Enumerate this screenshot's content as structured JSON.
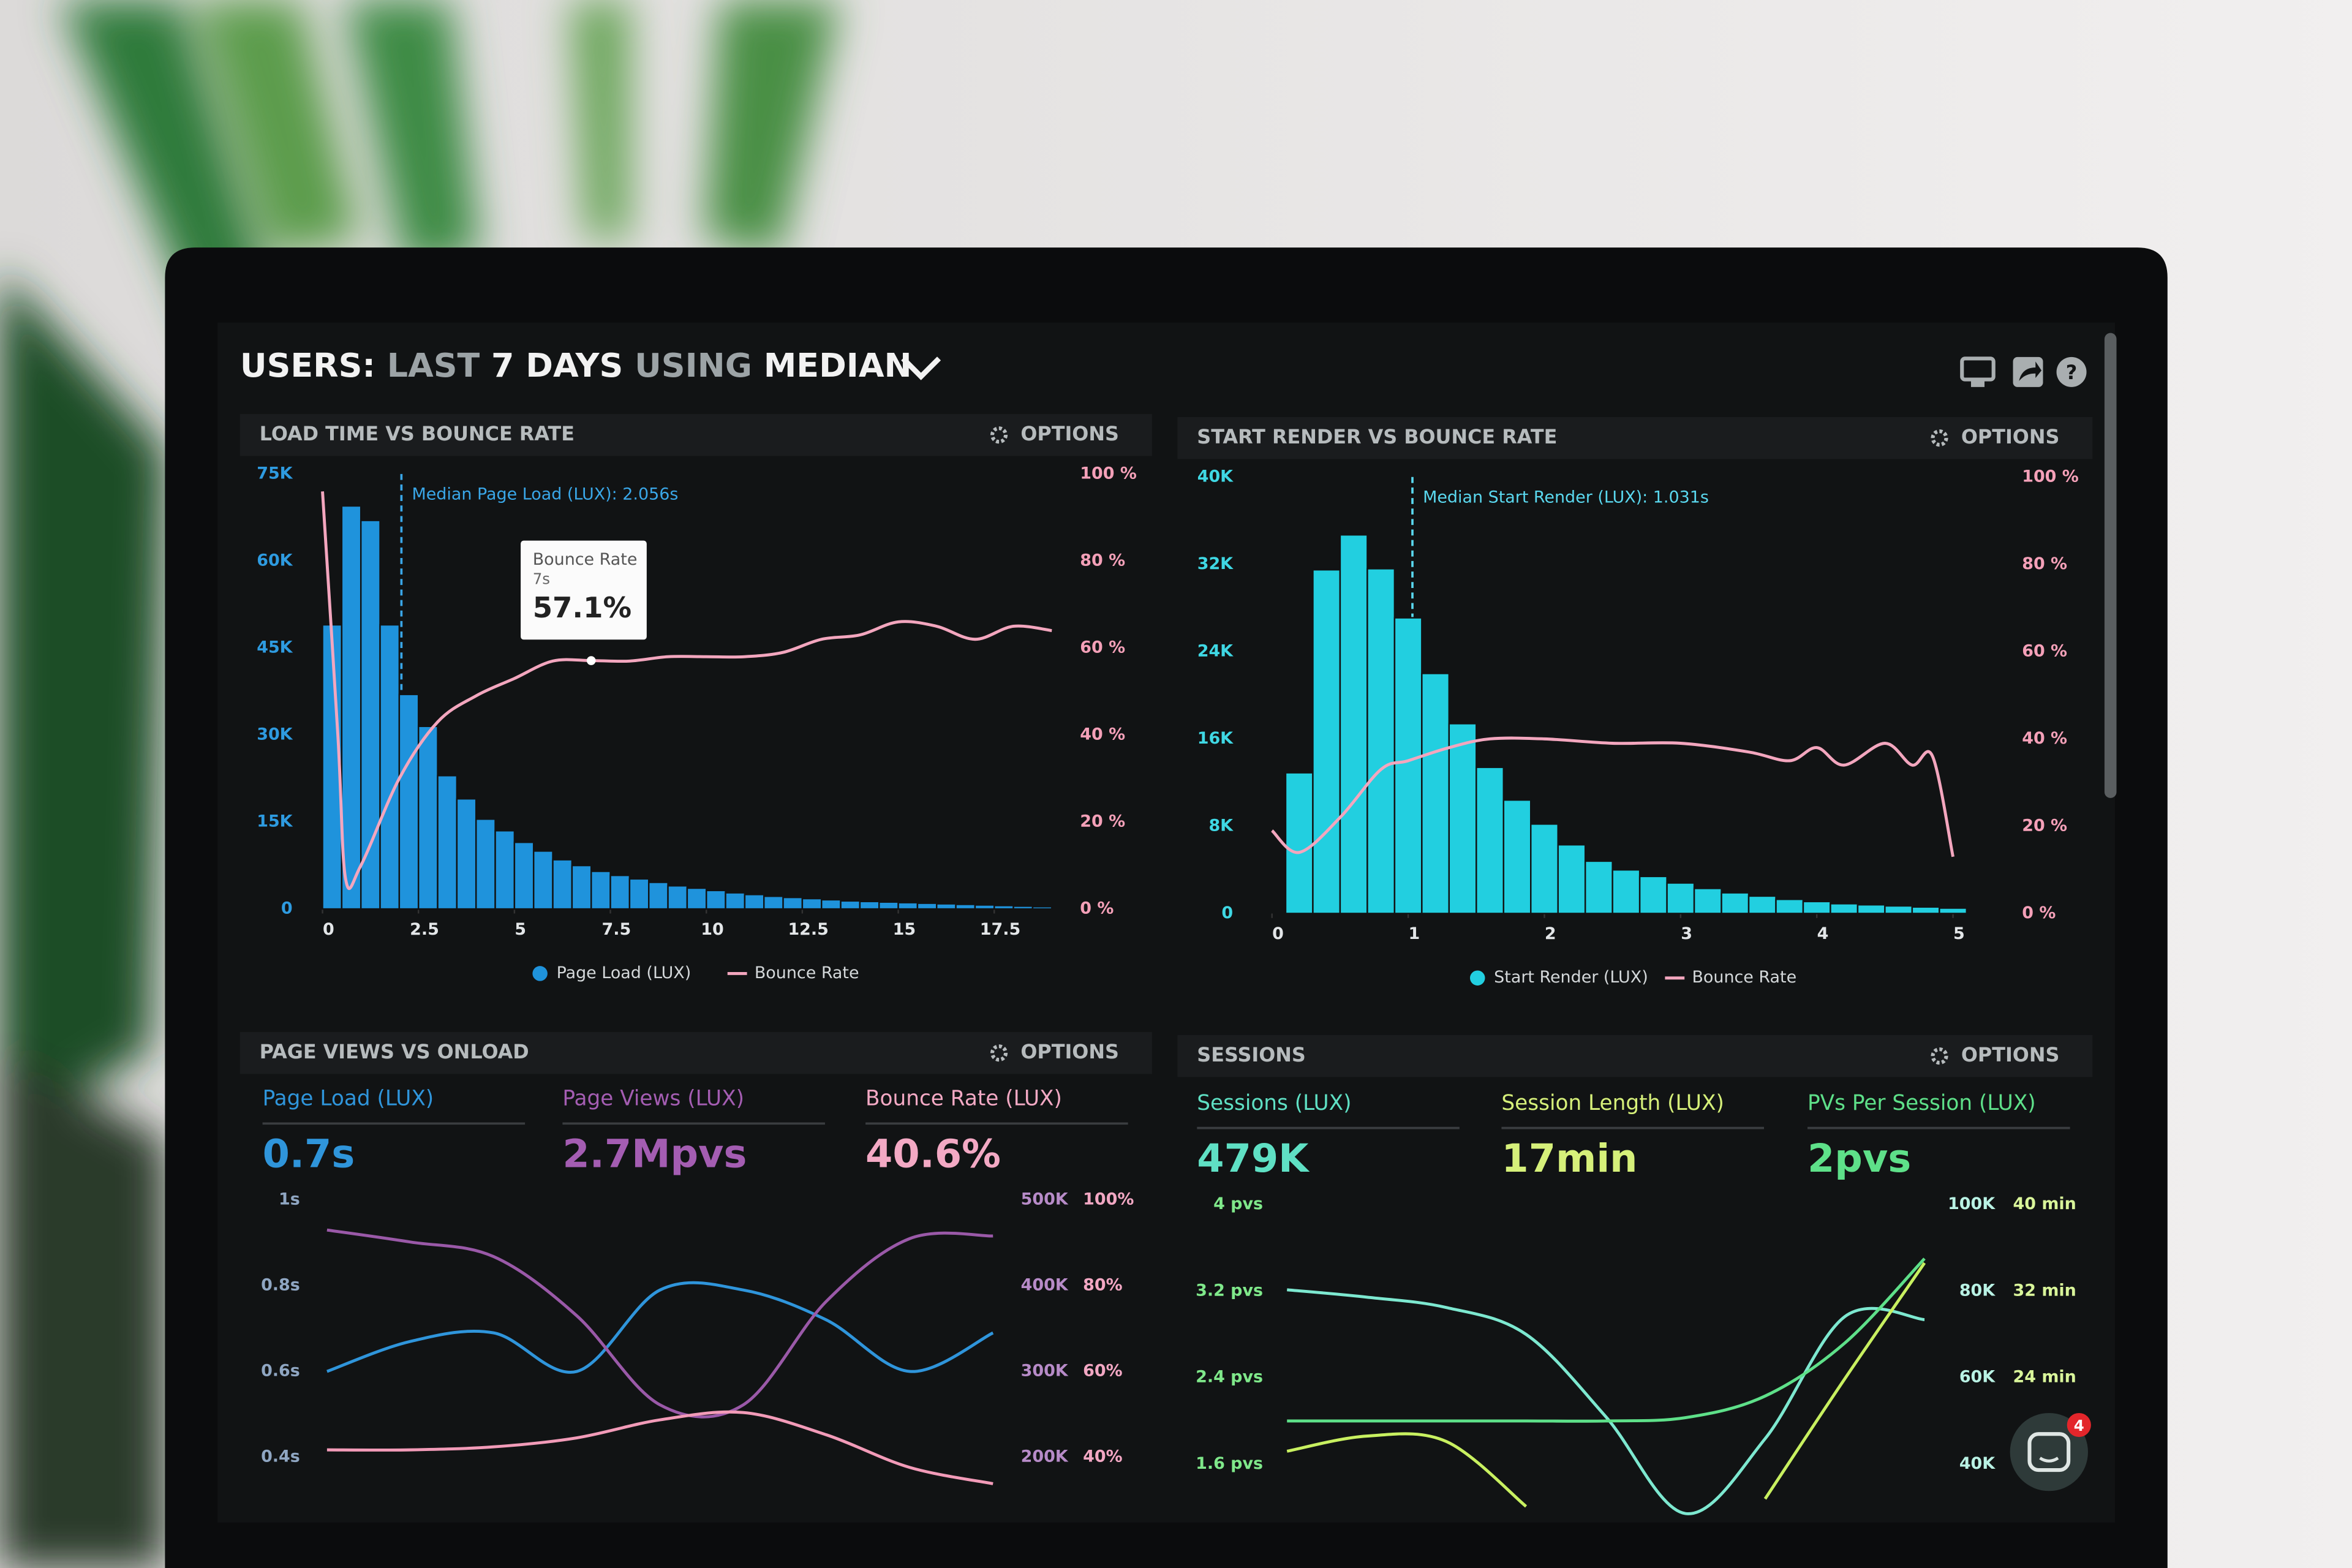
{
  "header": {
    "title": [
      "USERS:",
      "LAST",
      "7 DAYS",
      "USING",
      "MEDIAN"
    ],
    "chat_badge": 4
  },
  "chart_data": [
    {
      "type": "histogram",
      "title": "LOAD TIME VS BOUNCE RATE",
      "options_label": "OPTIONS",
      "name": "Page Load (LUX)",
      "color": "#1f93dc",
      "bins": [
        0,
        0.5,
        1,
        1.5,
        2,
        2.5,
        3,
        3.5,
        4,
        4.5,
        5,
        5.5,
        6,
        6.5,
        7,
        7.5,
        8,
        8.5,
        9,
        9.5,
        10,
        10.5,
        11,
        11.5,
        12,
        12.5,
        13,
        13.5,
        14,
        14.5,
        15,
        15.5,
        16,
        16.5,
        17,
        17.5,
        18,
        18.5,
        19
      ],
      "values": [
        49000,
        69500,
        67000,
        49000,
        37000,
        31500,
        23000,
        19000,
        15500,
        13500,
        11500,
        10000,
        8500,
        7500,
        6500,
        5800,
        5200,
        4600,
        4000,
        3600,
        3200,
        2800,
        2500,
        2200,
        2000,
        1800,
        1600,
        1400,
        1300,
        1200,
        1100,
        1000,
        900,
        800,
        700,
        600,
        500,
        400
      ],
      "series": [
        {
          "name": "Bounce Rate",
          "color": "#f3a6be",
          "axis": "y2",
          "x": [
            0,
            0.4,
            0.6,
            1,
            2,
            3,
            4,
            5,
            6,
            7,
            8,
            9,
            10,
            11,
            12,
            13,
            14,
            15,
            16,
            17,
            18,
            19
          ],
          "values": [
            96,
            40,
            7,
            10,
            30,
            43,
            49,
            53,
            57,
            57.1,
            57,
            58,
            58,
            58,
            59,
            62,
            63,
            66,
            65,
            62,
            65,
            64
          ]
        }
      ],
      "xlim": [
        0,
        19.5
      ],
      "xticks": [
        0,
        2.5,
        5,
        7.5,
        10,
        12.5,
        15,
        17.5
      ],
      "ylim": [
        0,
        75000
      ],
      "yticks": [
        0,
        {
          "value": 15000,
          "label": "15K"
        },
        {
          "value": 30000,
          "label": "30K"
        },
        {
          "value": 45000,
          "label": "45K"
        },
        {
          "value": 60000,
          "label": "60K"
        },
        {
          "value": 75000,
          "label": "75K"
        }
      ],
      "y2lim": [
        0,
        100
      ],
      "y2ticks": [
        {
          "value": 0,
          "label": "0 %"
        },
        {
          "value": 20,
          "label": "20 %"
        },
        {
          "value": 40,
          "label": "40 %"
        },
        {
          "value": 60,
          "label": "60 %"
        },
        {
          "value": 80,
          "label": "80 %"
        },
        {
          "value": 100,
          "label": "100 %"
        }
      ],
      "axis_colors": {
        "y": "#2e9be0",
        "y2": "#f4a0b8",
        "x": "#e3e6e8"
      },
      "annotations": [
        {
          "text": "Median Page Load (LUX): 2.056s",
          "x": 2.056,
          "color": "#3aa7e8"
        }
      ],
      "tooltip": {
        "title": "Bounce Rate",
        "x": {
          "value": 7,
          "label": "7s"
        },
        "value": 57.1,
        "value_label": "57.1%"
      }
    },
    {
      "type": "histogram",
      "title": "START RENDER VS BOUNCE RATE",
      "options_label": "OPTIONS",
      "name": "Start Render (LUX)",
      "color": "#22cfe0",
      "bins": [
        0.1,
        0.3,
        0.5,
        0.7,
        0.9,
        1.1,
        1.3,
        1.5,
        1.7,
        1.9,
        2.1,
        2.3,
        2.5,
        2.7,
        2.9,
        3.1,
        3.3,
        3.5,
        3.7,
        3.9,
        4.1,
        4.3,
        4.5,
        4.7,
        4.9,
        5.1
      ],
      "values": [
        12900,
        31500,
        34700,
        31600,
        27100,
        22000,
        17400,
        13400,
        10400,
        8200,
        6300,
        4800,
        4000,
        3400,
        2800,
        2300,
        1900,
        1600,
        1300,
        1100,
        900,
        800,
        700,
        600,
        500
      ],
      "series": [
        {
          "name": "Bounce Rate",
          "color": "#f3a6be",
          "axis": "y2",
          "x": [
            0,
            0.2,
            0.5,
            0.8,
            1,
            1.3,
            1.6,
            2,
            2.5,
            3,
            3.5,
            3.8,
            4,
            4.2,
            4.5,
            4.7,
            4.85,
            5
          ],
          "values": [
            19,
            14,
            22,
            33,
            35,
            38,
            40,
            40,
            39,
            39,
            37,
            35,
            38,
            34,
            39,
            34,
            36,
            13
          ]
        }
      ],
      "xlim": [
        0,
        5
      ],
      "xticks": [
        0,
        1,
        2,
        3,
        4,
        5
      ],
      "ylim": [
        0,
        40000
      ],
      "yticks": [
        0,
        {
          "value": 8000,
          "label": "8K"
        },
        {
          "value": 16000,
          "label": "16K"
        },
        {
          "value": 24000,
          "label": "24K"
        },
        {
          "value": 32000,
          "label": "32K"
        },
        {
          "value": 40000,
          "label": "40K"
        }
      ],
      "y2lim": [
        0,
        100
      ],
      "y2ticks": [
        {
          "value": 0,
          "label": "0 %"
        },
        {
          "value": 20,
          "label": "20 %"
        },
        {
          "value": 40,
          "label": "40 %"
        },
        {
          "value": 60,
          "label": "60 %"
        },
        {
          "value": 80,
          "label": "80 %"
        },
        {
          "value": 100,
          "label": "100 %"
        }
      ],
      "axis_colors": {
        "y": "#3fd8e4",
        "y2": "#f4a0b8",
        "x": "#e3e6e8"
      },
      "annotations": [
        {
          "text": "Median Start Render (LUX): 1.031s",
          "x": 1.031,
          "color": "#5ad8ef"
        }
      ]
    },
    {
      "type": "line",
      "title": "PAGE VIEWS VS ONLOAD",
      "options_label": "OPTIONS",
      "stats": [
        {
          "label": "Page Load (LUX)",
          "value": "0.7s",
          "color": "#2f95db"
        },
        {
          "label": "Page Views (LUX)",
          "value": "2.7Mpvs",
          "color": "#a45db2"
        },
        {
          "label": "Bounce Rate (LUX)",
          "value": "40.6%",
          "color": "#f3a9c4"
        }
      ],
      "categories": [
        null,
        null,
        null,
        null,
        null,
        null,
        null,
        null,
        null
      ],
      "series": [
        {
          "color": "#2f95db",
          "axis": "y",
          "values": [
            0.6,
            0.67,
            0.69,
            0.6,
            0.79,
            0.79,
            0.72,
            0.6,
            0.69
          ]
        },
        {
          "color": "#9a59a8",
          "axis": "y2",
          "values": [
            465000,
            451000,
            434000,
            365000,
            261000,
            261000,
            382000,
            455000,
            458000
          ]
        },
        {
          "color": "#f29bb8",
          "axis": "y3",
          "values": [
            41.7,
            41.7,
            42.4,
            44.5,
            48.7,
            50.4,
            45.2,
            37.6,
            33.8
          ]
        }
      ],
      "ylim": [
        0.3,
        1
      ],
      "yticks": [
        {
          "value": 0.4,
          "label": "0.4s"
        },
        {
          "value": 0.6,
          "label": "0.6s"
        },
        {
          "value": 0.8,
          "label": "0.8s"
        },
        {
          "value": 1,
          "label": "1s"
        }
      ],
      "y2lim": [
        150000,
        500000
      ],
      "y2ticks": [
        {
          "value": 200000,
          "label": "200K"
        },
        {
          "value": 300000,
          "label": "300K"
        },
        {
          "value": 400000,
          "label": "400K"
        },
        {
          "value": 500000,
          "label": "500K"
        }
      ],
      "y3lim": [
        30,
        100
      ],
      "y3ticks": [
        {
          "value": 40,
          "label": "40%"
        },
        {
          "value": 60,
          "label": "60%"
        },
        {
          "value": 80,
          "label": "80%"
        },
        {
          "value": 100,
          "label": "100%"
        }
      ],
      "axis_colors": {
        "y": "#8fa6c2",
        "y2": "#b78bc8",
        "y3": "#f2a7c3"
      }
    },
    {
      "type": "line",
      "title": "SESSIONS",
      "options_label": "OPTIONS",
      "stats": [
        {
          "label": "Sessions (LUX)",
          "value": "479K",
          "color": "#5fe0c4"
        },
        {
          "label": "Session Length (LUX)",
          "value": "17min",
          "color": "#d6f07a"
        },
        {
          "label": "PVs Per Session (LUX)",
          "value": "2pvs",
          "color": "#5ee089"
        }
      ],
      "categories": [
        null,
        null,
        null,
        null,
        null,
        null,
        null,
        null,
        null
      ],
      "series": [
        {
          "color": "#7de8d0",
          "axis": "y2",
          "values": [
            80300,
            78600,
            76200,
            70000,
            51000,
            28600,
            45900,
            74100,
            73400
          ]
        },
        {
          "color": "#5ee089",
          "axis": "y",
          "values": [
            2.0,
            2.0,
            2.0,
            2.0,
            2.0,
            2.03,
            2.23,
            2.72,
            3.5
          ]
        },
        {
          "color": "#c8f060",
          "axis": "y3",
          "values": [
            17.2,
            18.6,
            18.1,
            12.1,
            null,
            null,
            12.8,
            23.9,
            34.6
          ]
        }
      ],
      "ylim": [
        1.2,
        4
      ],
      "yticks": [
        {
          "value": 1.6,
          "label": "1.6 pvs"
        },
        {
          "value": 2.4,
          "label": "2.4 pvs"
        },
        {
          "value": 3.2,
          "label": "3.2 pvs"
        },
        {
          "value": 4,
          "label": "4 pvs"
        }
      ],
      "y2lim": [
        30000,
        100000
      ],
      "y2ticks": [
        {
          "value": 40000,
          "label": "40K"
        },
        {
          "value": 60000,
          "label": "60K"
        },
        {
          "value": 80000,
          "label": "80K"
        },
        {
          "value": 100000,
          "label": "100K"
        }
      ],
      "y3lim": [
        12,
        40
      ],
      "y3ticks": [
        {
          "value": 24,
          "label": "24 min"
        },
        {
          "value": 32,
          "label": "32 min"
        },
        {
          "value": 40,
          "label": "40 min"
        }
      ],
      "axis_colors": {
        "y": "#7fe88a",
        "y2": "#b9f2e4",
        "y3": "#d9f59a"
      }
    }
  ]
}
